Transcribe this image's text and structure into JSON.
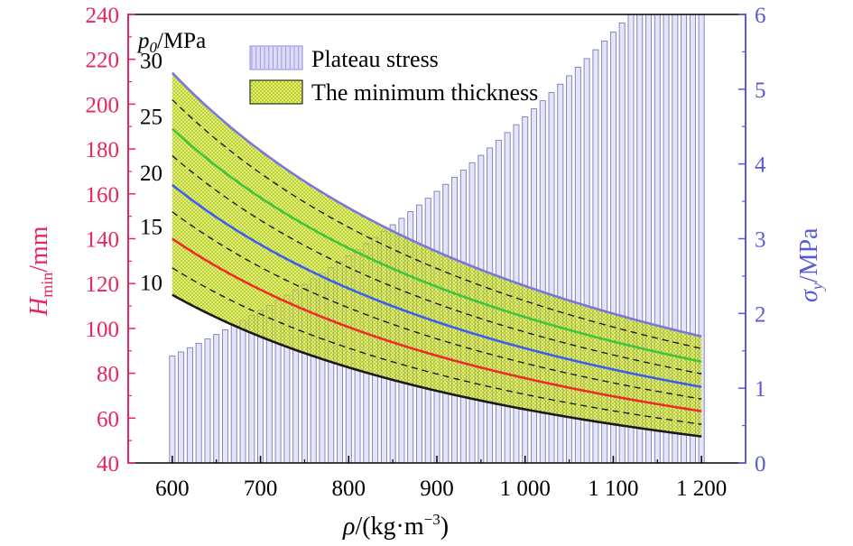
{
  "chart_data": {
    "type": "bar+line",
    "x_axis": {
      "label_symbol": "ρ",
      "label_unit": "/(kg·m",
      "label_exp": "−3",
      "label_close": ")",
      "range": [
        550,
        1250
      ],
      "ticks": [
        600,
        700,
        800,
        900,
        1000,
        1100,
        1200
      ],
      "tick_labels": [
        "600",
        "700",
        "800",
        "900",
        "1 000",
        "1 100",
        "1 200"
      ]
    },
    "y_left": {
      "label_symbol": "H",
      "label_sub": "min",
      "label_unit": "/mm",
      "range": [
        40,
        240
      ],
      "ticks": [
        40,
        60,
        80,
        100,
        120,
        140,
        160,
        180,
        200,
        220,
        240
      ],
      "color": "#e8265e"
    },
    "y_right": {
      "label_symbol": "σ",
      "label_sub": "y",
      "label_unit": "/MPa",
      "range": [
        0,
        6
      ],
      "ticks": [
        0,
        1,
        2,
        3,
        4,
        5,
        6
      ],
      "color": "#5a5ad8"
    },
    "curve_group_label": {
      "symbol": "p",
      "sub": "0",
      "unit": "/MPa"
    },
    "legend": {
      "position": "top-center",
      "items": [
        {
          "label": "Plateau stress",
          "kind": "bar"
        },
        {
          "label": "The minimum thickness",
          "kind": "band"
        }
      ]
    },
    "plateau_stress": {
      "name": "Plateau stress",
      "x_start": 600,
      "x_end": 1200,
      "x_step": 10,
      "sigma_at_start": 1.43,
      "exponent": 2.3
    },
    "min_thickness": {
      "name": "The minimum thickness",
      "exponent": -1.15,
      "solid_curves": [
        {
          "p0": "10",
          "H_at_600": 115,
          "color": "#1a1a1a"
        },
        {
          "p0": "15",
          "H_at_600": 140,
          "color": "#ee2b2b"
        },
        {
          "p0": "20",
          "H_at_600": 164,
          "color": "#3a5ef0"
        },
        {
          "p0": "25",
          "H_at_600": 189,
          "color": "#3ec43e"
        },
        {
          "p0": "30",
          "H_at_600": 214,
          "color": "#7777dd"
        }
      ],
      "dashed_curves_H_at_600": [
        127,
        152,
        177,
        202
      ],
      "band_color": "#e6f35a"
    }
  }
}
